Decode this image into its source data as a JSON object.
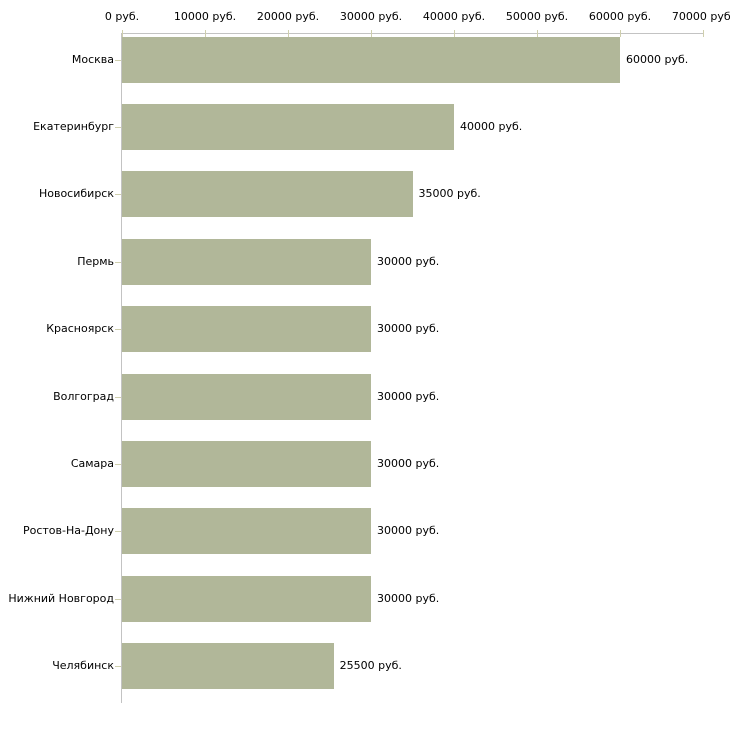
{
  "chart_data": {
    "type": "bar",
    "orientation": "horizontal",
    "title": "",
    "categories": [
      "Москва",
      "Екатеринбург",
      "Новосибирск",
      "Пермь",
      "Красноярск",
      "Волгоград",
      "Самара",
      "Ростов-На-Дону",
      "Нижний Новгород",
      "Челябинск"
    ],
    "values": [
      60000,
      40000,
      35000,
      30000,
      30000,
      30000,
      30000,
      30000,
      30000,
      25500
    ],
    "value_labels": [
      "60000 руб.",
      "40000 руб.",
      "35000 руб.",
      "30000 руб.",
      "30000 руб.",
      "30000 руб.",
      "30000 руб.",
      "30000 руб.",
      "30000 руб.",
      "25500 руб."
    ],
    "x_axis": {
      "min": 0,
      "max": 70000,
      "unit": "руб.",
      "ticks": [
        0,
        10000,
        20000,
        30000,
        40000,
        50000,
        60000,
        70000
      ],
      "tick_labels": [
        "0 руб.",
        "10000 руб.",
        "20000 руб.",
        "30000 руб.",
        "40000 руб.",
        "50000 руб.",
        "60000 руб.",
        "70000 руб."
      ]
    },
    "legend": null,
    "grid": false,
    "colors": {
      "bar": "#b1b799",
      "axis_line": "#c3c3c3",
      "tick_mark": "#cfcfad",
      "text": "#000000",
      "background": "#ffffff"
    }
  }
}
